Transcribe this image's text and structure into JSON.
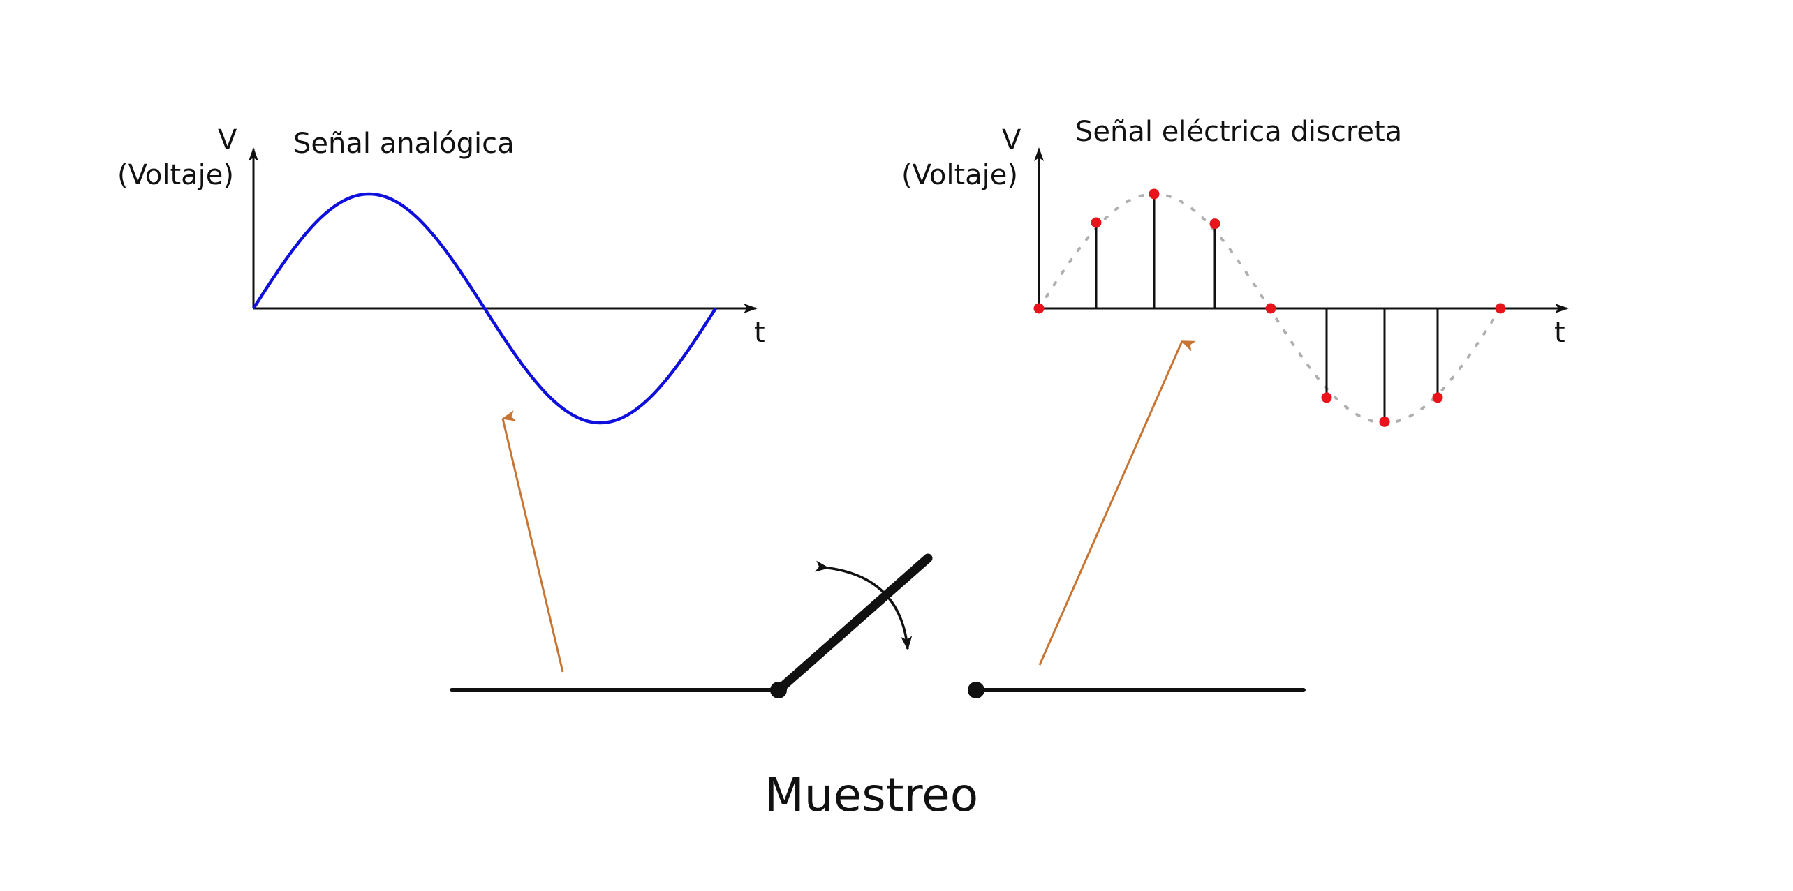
{
  "left_panel": {
    "title": "Señal analógica",
    "y_axis_symbol": "V",
    "y_axis_label": "(Voltaje)",
    "x_axis_label": "t",
    "curve_color": "#1010dd"
  },
  "right_panel": {
    "title": "Señal eléctrica discreta",
    "y_axis_symbol": "V",
    "y_axis_label": "(Voltaje)",
    "x_axis_label": "t",
    "sample_color": "#e8141c",
    "envelope_color": "#b0b0b0",
    "samples": [
      0,
      0.75,
      1.0,
      0.74,
      0,
      -0.78,
      -0.99,
      -0.78,
      0
    ]
  },
  "switch": {
    "caption": "Muestreo"
  },
  "arrow_color": "#c87533"
}
